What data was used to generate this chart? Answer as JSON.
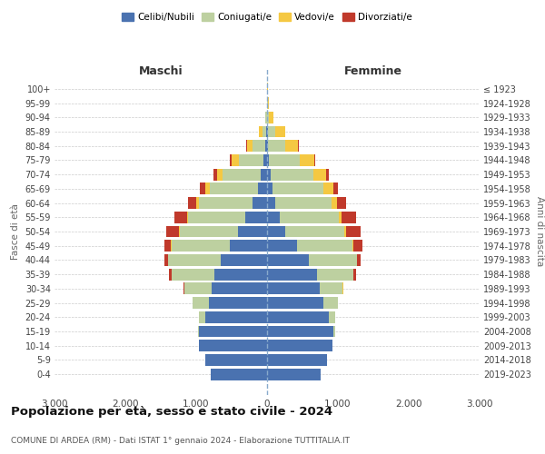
{
  "age_groups_bottom_to_top": [
    "0-4",
    "5-9",
    "10-14",
    "15-19",
    "20-24",
    "25-29",
    "30-34",
    "35-39",
    "40-44",
    "45-49",
    "50-54",
    "55-59",
    "60-64",
    "65-69",
    "70-74",
    "75-79",
    "80-84",
    "85-89",
    "90-94",
    "95-99",
    "100+"
  ],
  "birth_years_bottom_to_top": [
    "2019-2023",
    "2014-2018",
    "2009-2013",
    "2004-2008",
    "1999-2003",
    "1994-1998",
    "1989-1993",
    "1984-1988",
    "1979-1983",
    "1974-1978",
    "1969-1973",
    "1964-1968",
    "1959-1963",
    "1954-1958",
    "1949-1953",
    "1944-1948",
    "1939-1943",
    "1934-1938",
    "1929-1933",
    "1924-1928",
    "≤ 1923"
  ],
  "colors": {
    "celibi": "#4a72b0",
    "coniugati": "#bdd0a0",
    "vedovi": "#f5c842",
    "divorziati": "#c0392b"
  },
  "males": {
    "celibi": [
      790,
      870,
      960,
      960,
      870,
      820,
      780,
      750,
      650,
      530,
      410,
      310,
      200,
      130,
      90,
      50,
      20,
      10,
      5,
      2,
      2
    ],
    "coniugati": [
      2,
      2,
      5,
      20,
      90,
      230,
      390,
      600,
      750,
      820,
      820,
      800,
      760,
      680,
      540,
      350,
      180,
      60,
      15,
      2,
      0
    ],
    "vedovi": [
      0,
      0,
      0,
      0,
      1,
      1,
      1,
      1,
      2,
      5,
      10,
      20,
      40,
      60,
      80,
      100,
      80,
      40,
      10,
      2,
      0
    ],
    "divorziati": [
      0,
      0,
      0,
      0,
      2,
      5,
      10,
      30,
      50,
      100,
      180,
      180,
      120,
      80,
      50,
      30,
      15,
      5,
      2,
      0,
      0
    ]
  },
  "females": {
    "celibi": [
      750,
      840,
      920,
      940,
      870,
      800,
      740,
      700,
      590,
      420,
      260,
      180,
      120,
      80,
      50,
      25,
      15,
      10,
      5,
      2,
      2
    ],
    "coniugati": [
      2,
      2,
      5,
      20,
      90,
      200,
      330,
      520,
      680,
      790,
      830,
      830,
      790,
      720,
      600,
      440,
      240,
      100,
      25,
      5,
      0
    ],
    "vedovi": [
      0,
      0,
      0,
      0,
      1,
      1,
      1,
      2,
      5,
      10,
      20,
      40,
      80,
      140,
      180,
      200,
      180,
      140,
      60,
      15,
      5
    ],
    "divorziati": [
      0,
      0,
      0,
      0,
      2,
      5,
      10,
      30,
      50,
      130,
      210,
      200,
      120,
      60,
      40,
      20,
      10,
      5,
      2,
      0,
      0
    ]
  },
  "xlim": 3000,
  "title": "Popolazione per età, sesso e stato civile - 2024",
  "subtitle": "COMUNE DI ARDEA (RM) - Dati ISTAT 1° gennaio 2024 - Elaborazione TUTTITALIA.IT",
  "xlabel_left": "Maschi",
  "xlabel_right": "Femmine",
  "ylabel_left": "Fasce di età",
  "ylabel_right": "Anni di nascita",
  "legend_labels": [
    "Celibi/Nubili",
    "Coniugati/e",
    "Vedovi/e",
    "Divorziati/e"
  ],
  "bg_color": "#ffffff",
  "grid_color": "#cccccc",
  "xtick_labels": [
    "3.000",
    "2.000",
    "1.000",
    "0",
    "1.000",
    "2.000",
    "3.000"
  ]
}
